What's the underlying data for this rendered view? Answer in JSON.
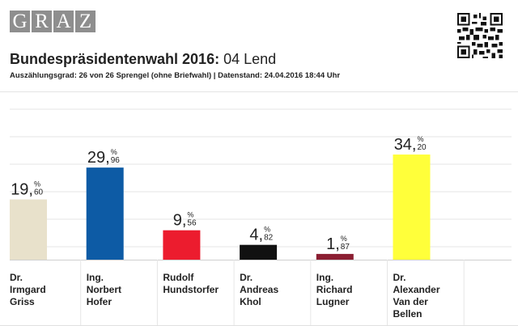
{
  "logo": {
    "letters": [
      "G",
      "R",
      "A",
      "Z"
    ]
  },
  "header": {
    "title_bold": "Bundespräsidentenwahl 2016:",
    "title_rest": " 04 Lend",
    "subtitle": "Auszählungsgrad: 26 von 26 Sprengel (ohne Briefwahl) | Datenstand: 24.04.2016 18:44 Uhr"
  },
  "chart_data": {
    "type": "bar",
    "title": "Bundespräsidentenwahl 2016: 04 Lend",
    "categories": [
      [
        "Dr.",
        "Irmgard",
        "Griss"
      ],
      [
        "Ing.",
        "Norbert",
        "Hofer"
      ],
      [
        "Rudolf",
        "Hundstorfer"
      ],
      [
        "Dr.",
        "Andreas",
        "Khol"
      ],
      [
        "Ing.",
        "Richard",
        "Lugner"
      ],
      [
        "Dr.",
        "Alexander",
        "Van der",
        "Bellen"
      ]
    ],
    "values": [
      19.6,
      29.96,
      9.56,
      4.82,
      1.87,
      34.2
    ],
    "labels": [
      {
        "int": "19",
        "dec": "60"
      },
      {
        "int": "29",
        "dec": "96"
      },
      {
        "int": "9",
        "dec": "56"
      },
      {
        "int": "4",
        "dec": "82"
      },
      {
        "int": "1",
        "dec": "87"
      },
      {
        "int": "34",
        "dec": "20"
      }
    ],
    "unit": "%",
    "colors": [
      "#e8e1cb",
      "#0d5ba5",
      "#ec1c2e",
      "#111111",
      "#8b1e32",
      "#ffff3a"
    ],
    "ylim": [
      0,
      40
    ],
    "grid": true,
    "legend": "none"
  }
}
